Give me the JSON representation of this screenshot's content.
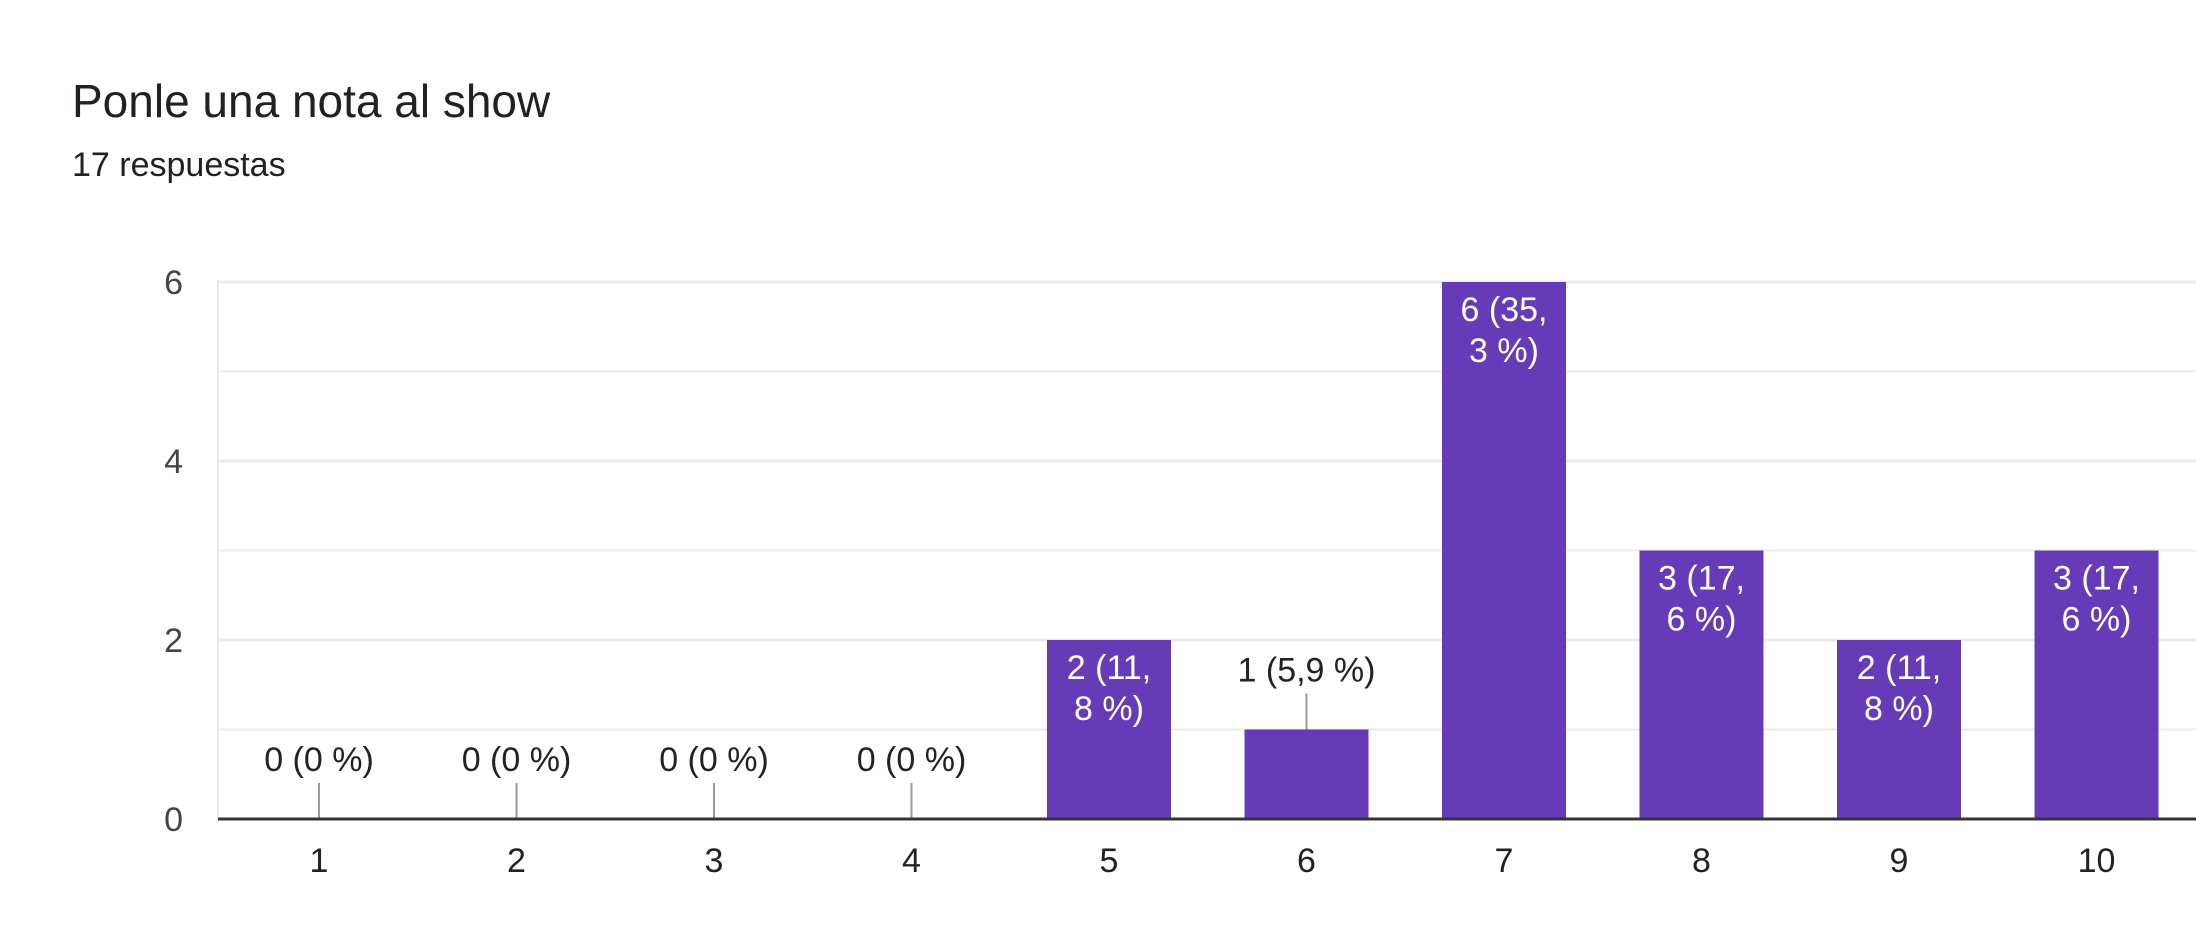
{
  "header": {
    "title": "Ponle una nota al show",
    "subtitle": "17 respuestas"
  },
  "colors": {
    "bar": "#673ab7",
    "grid": "#ebebeb",
    "axis": "#333333"
  },
  "chart_data": {
    "type": "bar",
    "categories": [
      "1",
      "2",
      "3",
      "4",
      "5",
      "6",
      "7",
      "8",
      "9",
      "10"
    ],
    "values": [
      0,
      0,
      0,
      0,
      2,
      1,
      6,
      3,
      2,
      3
    ],
    "data_labels": [
      [
        "0 (0 %)"
      ],
      [
        "0 (0 %)"
      ],
      [
        "0 (0 %)"
      ],
      [
        "0 (0 %)"
      ],
      [
        "2 (11,",
        "8 %)"
      ],
      [
        "1 (5,9 %)"
      ],
      [
        "6 (35,",
        "3 %)"
      ],
      [
        "3 (17,",
        "6 %)"
      ],
      [
        "2 (11,",
        "8 %)"
      ],
      [
        "3 (17,",
        "6 %)"
      ]
    ],
    "y_ticks": [
      "0",
      "2",
      "4",
      "6"
    ],
    "ylim": [
      0,
      6
    ],
    "grid": true,
    "legend": "none",
    "title": "Ponle una nota al show",
    "xlabel": "",
    "ylabel": ""
  }
}
